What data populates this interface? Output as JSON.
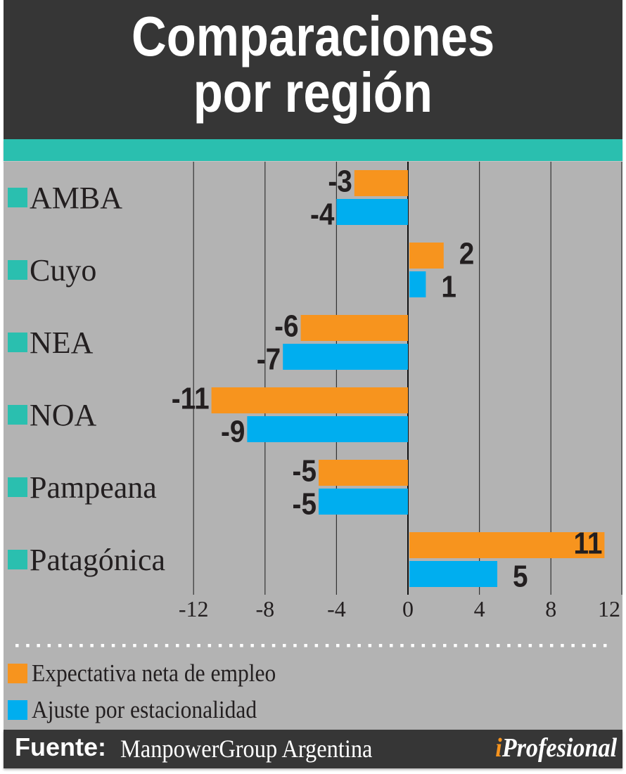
{
  "header": {
    "title_line1": "Comparaciones",
    "title_line2": "por región"
  },
  "colors": {
    "header_bg": "#363636",
    "accent_teal": "#2ABFAF",
    "panel_bg": "#B3B3B3",
    "series_orange": "#F7941E",
    "series_blue": "#00AEEF",
    "text_dark": "#231F20"
  },
  "chart_data": {
    "type": "bar",
    "orientation": "horizontal",
    "title": "Comparaciones por región",
    "categories": [
      "AMBA",
      "Cuyo",
      "NEA",
      "NOA",
      "Pampeana",
      "Patagónica"
    ],
    "series": [
      {
        "name": "Expectativa neta de empleo",
        "color": "#F7941E",
        "values": [
          -3,
          2,
          -6,
          -11,
          -5,
          11
        ]
      },
      {
        "name": "Ajuste por estacionalidad",
        "color": "#00AEEF",
        "values": [
          -4,
          1,
          -7,
          -9,
          -5,
          5
        ]
      }
    ],
    "value_labels": [
      [
        "-3",
        "2",
        "-6",
        "-11",
        "-5",
        "11"
      ],
      [
        "-4",
        "1",
        "-7",
        "-9",
        "-5",
        "5"
      ]
    ],
    "xlim": [
      -12,
      12
    ],
    "xticks": [
      -12,
      -8,
      -4,
      0,
      4,
      8,
      12
    ],
    "xtick_labels": [
      "-12",
      "-8",
      "-4",
      "0",
      "4",
      "8",
      "12"
    ],
    "grid": true,
    "legend_position": "bottom-left",
    "xlabel": "",
    "ylabel": ""
  },
  "legend": {
    "items": [
      {
        "label": "Expectativa neta de empleo",
        "color": "#F7941E"
      },
      {
        "label": "Ajuste por estacionalidad",
        "color": "#00AEEF"
      }
    ]
  },
  "footer": {
    "source_label": "Fuente:",
    "source_value": "ManpowerGroup Argentina",
    "logo_i": "i",
    "logo_rest": "Profesional"
  }
}
